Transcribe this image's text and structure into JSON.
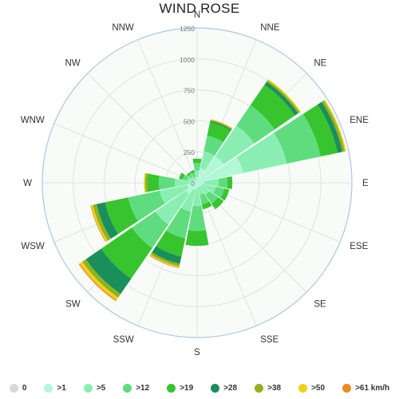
{
  "chart_data": {
    "type": "polar-stacked-bar",
    "title": "WIND ROSE",
    "directions": [
      "N",
      "NNE",
      "NE",
      "ENE",
      "E",
      "ESE",
      "SE",
      "SSE",
      "S",
      "SSW",
      "SW",
      "WSW",
      "W",
      "WNW",
      "NW",
      "NNW"
    ],
    "radial_ticks": [
      "0",
      "250",
      "500",
      "750",
      "1000",
      "1250"
    ],
    "rmax": 1250,
    "series": [
      {
        "name": "0",
        "color": "#d9d9d9",
        "values": [
          0,
          0,
          0,
          0,
          0,
          0,
          0,
          0,
          0,
          0,
          0,
          0,
          0,
          0,
          0,
          0
        ]
      },
      {
        "name": ">1",
        "color": "#b2f7d8",
        "values": [
          45,
          120,
          260,
          380,
          55,
          45,
          35,
          35,
          40,
          60,
          110,
          80,
          60,
          35,
          25,
          20
        ]
      },
      {
        "name": ">5",
        "color": "#8aeeb3",
        "values": [
          55,
          140,
          300,
          360,
          120,
          110,
          85,
          65,
          150,
          180,
          300,
          230,
          120,
          45,
          35,
          30
        ]
      },
      {
        "name": ">12",
        "color": "#5fdc7e",
        "values": [
          60,
          130,
          200,
          280,
          70,
          70,
          85,
          80,
          200,
          220,
          230,
          260,
          130,
          40,
          30,
          35
        ]
      },
      {
        "name": ">19",
        "color": "#37c42e",
        "values": [
          35,
          110,
          200,
          140,
          40,
          40,
          55,
          40,
          120,
          150,
          300,
          190,
          95,
          30,
          15,
          20
        ]
      },
      {
        "name": ">28",
        "color": "#1a8f5c",
        "values": [
          0,
          10,
          30,
          40,
          0,
          0,
          0,
          0,
          0,
          60,
          150,
          70,
          0,
          0,
          0,
          0
        ]
      },
      {
        "name": ">38",
        "color": "#8fb21f",
        "values": [
          0,
          10,
          15,
          20,
          0,
          0,
          0,
          0,
          0,
          20,
          35,
          30,
          15,
          0,
          0,
          0
        ]
      },
      {
        "name": ">50",
        "color": "#eed21a",
        "values": [
          0,
          5,
          10,
          10,
          0,
          0,
          0,
          0,
          0,
          10,
          25,
          15,
          10,
          0,
          0,
          0
        ]
      },
      {
        "name": ">61 km/h",
        "color": "#f08a1c",
        "values": [
          0,
          0,
          0,
          0,
          0,
          0,
          0,
          0,
          0,
          5,
          10,
          5,
          0,
          0,
          0,
          0
        ]
      }
    ]
  },
  "legend": [
    {
      "label": "0",
      "color": "#d9d9d9"
    },
    {
      "label": ">1",
      "color": "#b2f7d8"
    },
    {
      "label": ">5",
      "color": "#8aeeb3"
    },
    {
      "label": ">12",
      "color": "#5fdc7e"
    },
    {
      "label": ">19",
      "color": "#37c42e"
    },
    {
      "label": ">28",
      "color": "#1a8f5c"
    },
    {
      "label": ">38",
      "color": "#8fb21f"
    },
    {
      "label": ">50",
      "color": "#eed21a"
    },
    {
      "label": ">61 km/h",
      "color": "#f08a1c"
    }
  ]
}
